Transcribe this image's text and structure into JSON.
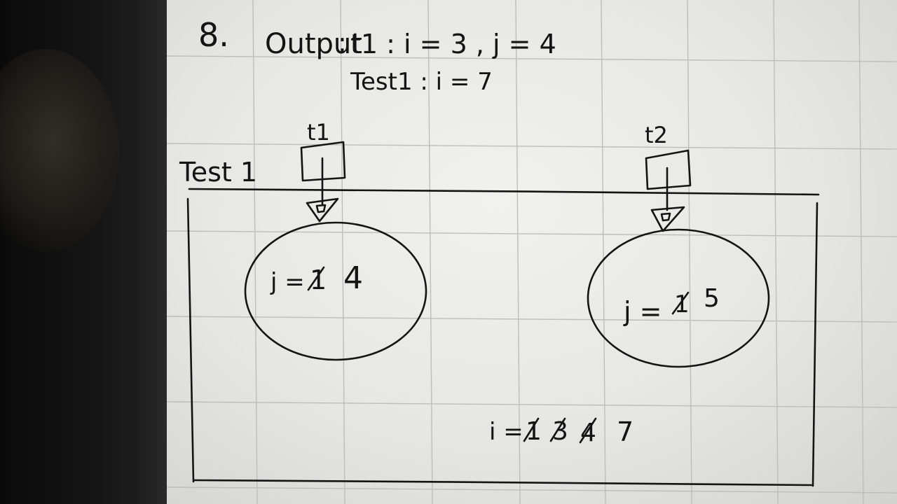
{
  "header": {
    "problem_number": "8.",
    "output_label": "Output",
    "output_value": "t1 : i = 3 , j = 4",
    "test_line": "Test1 : i = 7"
  },
  "diagram": {
    "frame_label": "Test 1",
    "threads": [
      {
        "id": "t1",
        "label": "t1",
        "bubble_var": "j =",
        "crossed": "1",
        "value": "4"
      },
      {
        "id": "t2",
        "label": "t2",
        "bubble_var": "j =",
        "crossed": "1",
        "value": "5"
      }
    ],
    "shared": {
      "var": "i =",
      "crossed": [
        "1",
        "3",
        "4"
      ],
      "value": "7"
    }
  }
}
